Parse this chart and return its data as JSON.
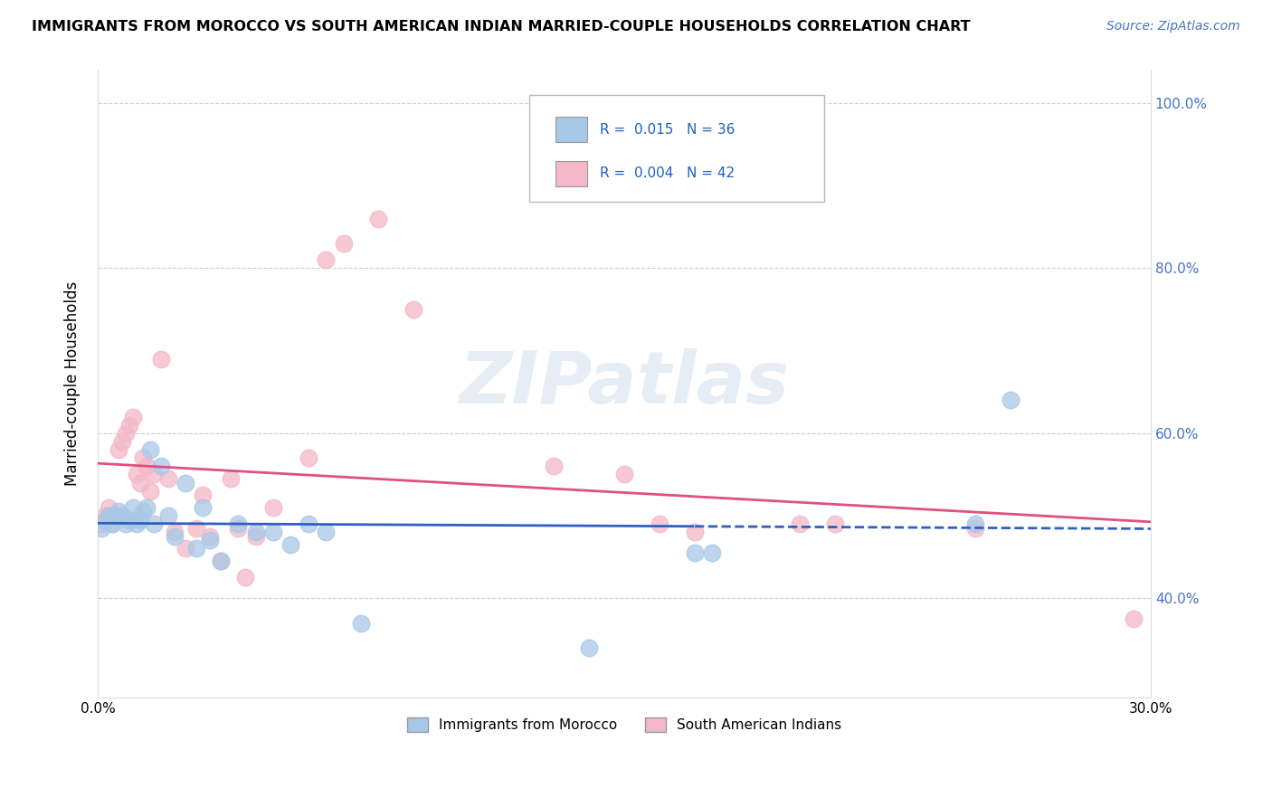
{
  "title": "IMMIGRANTS FROM MOROCCO VS SOUTH AMERICAN INDIAN MARRIED-COUPLE HOUSEHOLDS CORRELATION CHART",
  "source": "Source: ZipAtlas.com",
  "ylabel": "Married-couple Households",
  "xlim": [
    0.0,
    0.3
  ],
  "ylim": [
    0.28,
    1.04
  ],
  "yticks": [
    0.4,
    0.6,
    0.8,
    1.0
  ],
  "blue_color": "#a8c8e8",
  "pink_color": "#f4b8c8",
  "blue_line_color": "#3060c0",
  "pink_line_color": "#e05080",
  "blue_line_solid_end": 0.17,
  "legend_r_blue": "0.015",
  "legend_n_blue": "36",
  "legend_r_pink": "0.004",
  "legend_n_pink": "42",
  "legend_label_blue": "Immigrants from Morocco",
  "legend_label_pink": "South American Indians",
  "watermark": "ZIPatlas",
  "blue_x": [
    0.001,
    0.002,
    0.003,
    0.004,
    0.005,
    0.006,
    0.007,
    0.008,
    0.009,
    0.01,
    0.011,
    0.012,
    0.013,
    0.014,
    0.015,
    0.016,
    0.018,
    0.02,
    0.022,
    0.025,
    0.028,
    0.03,
    0.032,
    0.035,
    0.04,
    0.045,
    0.05,
    0.055,
    0.06,
    0.065,
    0.075,
    0.14,
    0.17,
    0.175,
    0.25,
    0.26
  ],
  "blue_y": [
    0.485,
    0.495,
    0.5,
    0.49,
    0.5,
    0.505,
    0.5,
    0.49,
    0.495,
    0.51,
    0.49,
    0.495,
    0.505,
    0.51,
    0.58,
    0.49,
    0.56,
    0.5,
    0.475,
    0.54,
    0.46,
    0.51,
    0.47,
    0.445,
    0.49,
    0.48,
    0.48,
    0.465,
    0.49,
    0.48,
    0.37,
    0.34,
    0.455,
    0.455,
    0.49,
    0.64
  ],
  "pink_x": [
    0.001,
    0.002,
    0.003,
    0.004,
    0.005,
    0.006,
    0.007,
    0.008,
    0.009,
    0.01,
    0.011,
    0.012,
    0.013,
    0.014,
    0.015,
    0.016,
    0.018,
    0.02,
    0.022,
    0.025,
    0.028,
    0.03,
    0.032,
    0.035,
    0.038,
    0.04,
    0.042,
    0.045,
    0.05,
    0.06,
    0.065,
    0.07,
    0.08,
    0.09,
    0.13,
    0.15,
    0.16,
    0.17,
    0.2,
    0.21,
    0.25,
    0.295
  ],
  "pink_y": [
    0.49,
    0.5,
    0.51,
    0.49,
    0.5,
    0.58,
    0.59,
    0.6,
    0.61,
    0.62,
    0.55,
    0.54,
    0.57,
    0.56,
    0.53,
    0.55,
    0.69,
    0.545,
    0.48,
    0.46,
    0.485,
    0.525,
    0.475,
    0.445,
    0.545,
    0.485,
    0.425,
    0.475,
    0.51,
    0.57,
    0.81,
    0.83,
    0.86,
    0.75,
    0.56,
    0.55,
    0.49,
    0.48,
    0.49,
    0.49,
    0.485,
    0.375
  ],
  "blue_intercept": 0.487,
  "blue_slope": 0.05,
  "pink_intercept": 0.554,
  "pink_slope": -0.02
}
